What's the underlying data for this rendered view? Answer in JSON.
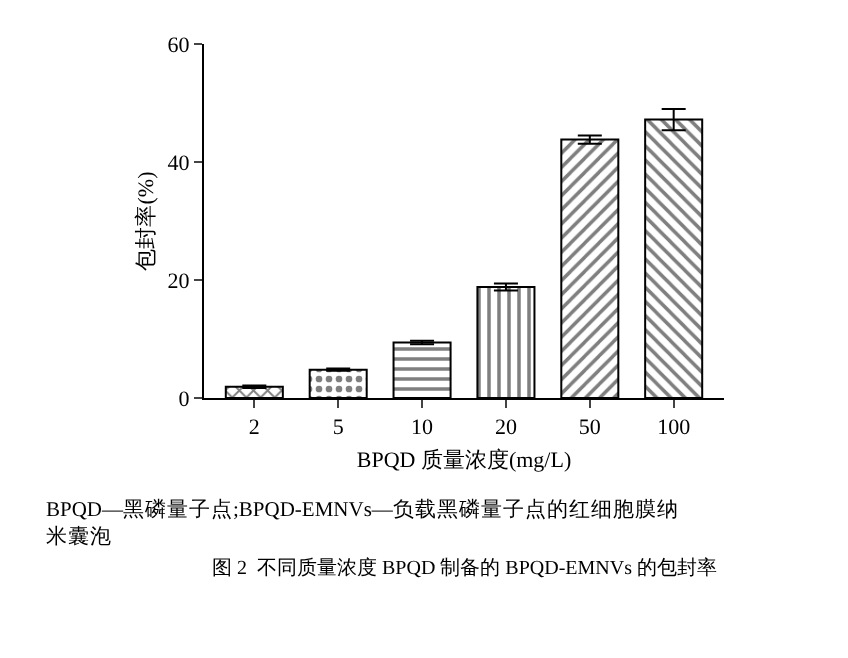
{
  "chart_data": {
    "type": "bar",
    "categories": [
      "2",
      "5",
      "10",
      "20",
      "50",
      "100"
    ],
    "values": [
      1.9,
      4.8,
      9.4,
      18.8,
      43.8,
      47.2
    ],
    "errors": [
      0.2,
      0.2,
      0.3,
      0.6,
      0.7,
      1.8
    ],
    "colors": [
      "#000000",
      "#000000",
      "#000000",
      "#000000",
      "#000000",
      "#000000"
    ],
    "xlabel": "BPQD 质量浓度(mg/L)",
    "ylabel": "包封率(%)",
    "ylim": [
      0,
      60
    ],
    "yticks": [
      0,
      20,
      40,
      60
    ],
    "annotations": [
      "BPQD—黑磷量子点;BPQD-EMNVs—负载黑磷量子点的红细胞膜纳米囊泡",
      "图 2  不同质量浓度 BPQD 制备的 BPQD-EMNVs 的包封率"
    ]
  }
}
